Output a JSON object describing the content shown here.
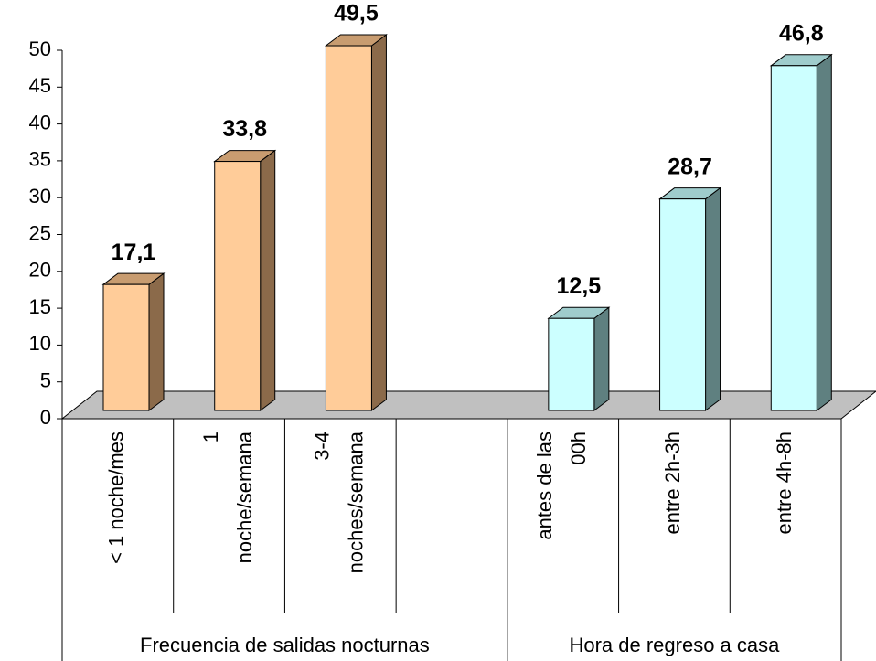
{
  "chart_data": {
    "type": "bar3d",
    "categories": [
      [
        "< 1 noche/mes"
      ],
      [
        "1",
        "noche/semana"
      ],
      [
        "3-4",
        "noches/semana"
      ],
      null,
      [
        "antes de las",
        "00h"
      ],
      [
        "entre 2h-3h"
      ],
      [
        "entre 4h-8h"
      ]
    ],
    "groups": [
      "Frecuencia de salidas nocturnas",
      "Hora de regreso a casa"
    ],
    "values": [
      17.1,
      33.8,
      49.5,
      null,
      12.5,
      28.7,
      46.8
    ],
    "value_labels": [
      "17,1",
      "33,8",
      "49,5",
      null,
      "12,5",
      "28,7",
      "46,8"
    ],
    "colors": [
      [
        "#ffcc99",
        "#c89c70",
        "#8b6a4a"
      ],
      [
        "#ccffff",
        "#9fcccc",
        "#5f8080"
      ]
    ],
    "ylim": [
      0,
      50
    ],
    "yticks": [
      0,
      5,
      10,
      15,
      20,
      25,
      30,
      35,
      40,
      45,
      50
    ]
  }
}
